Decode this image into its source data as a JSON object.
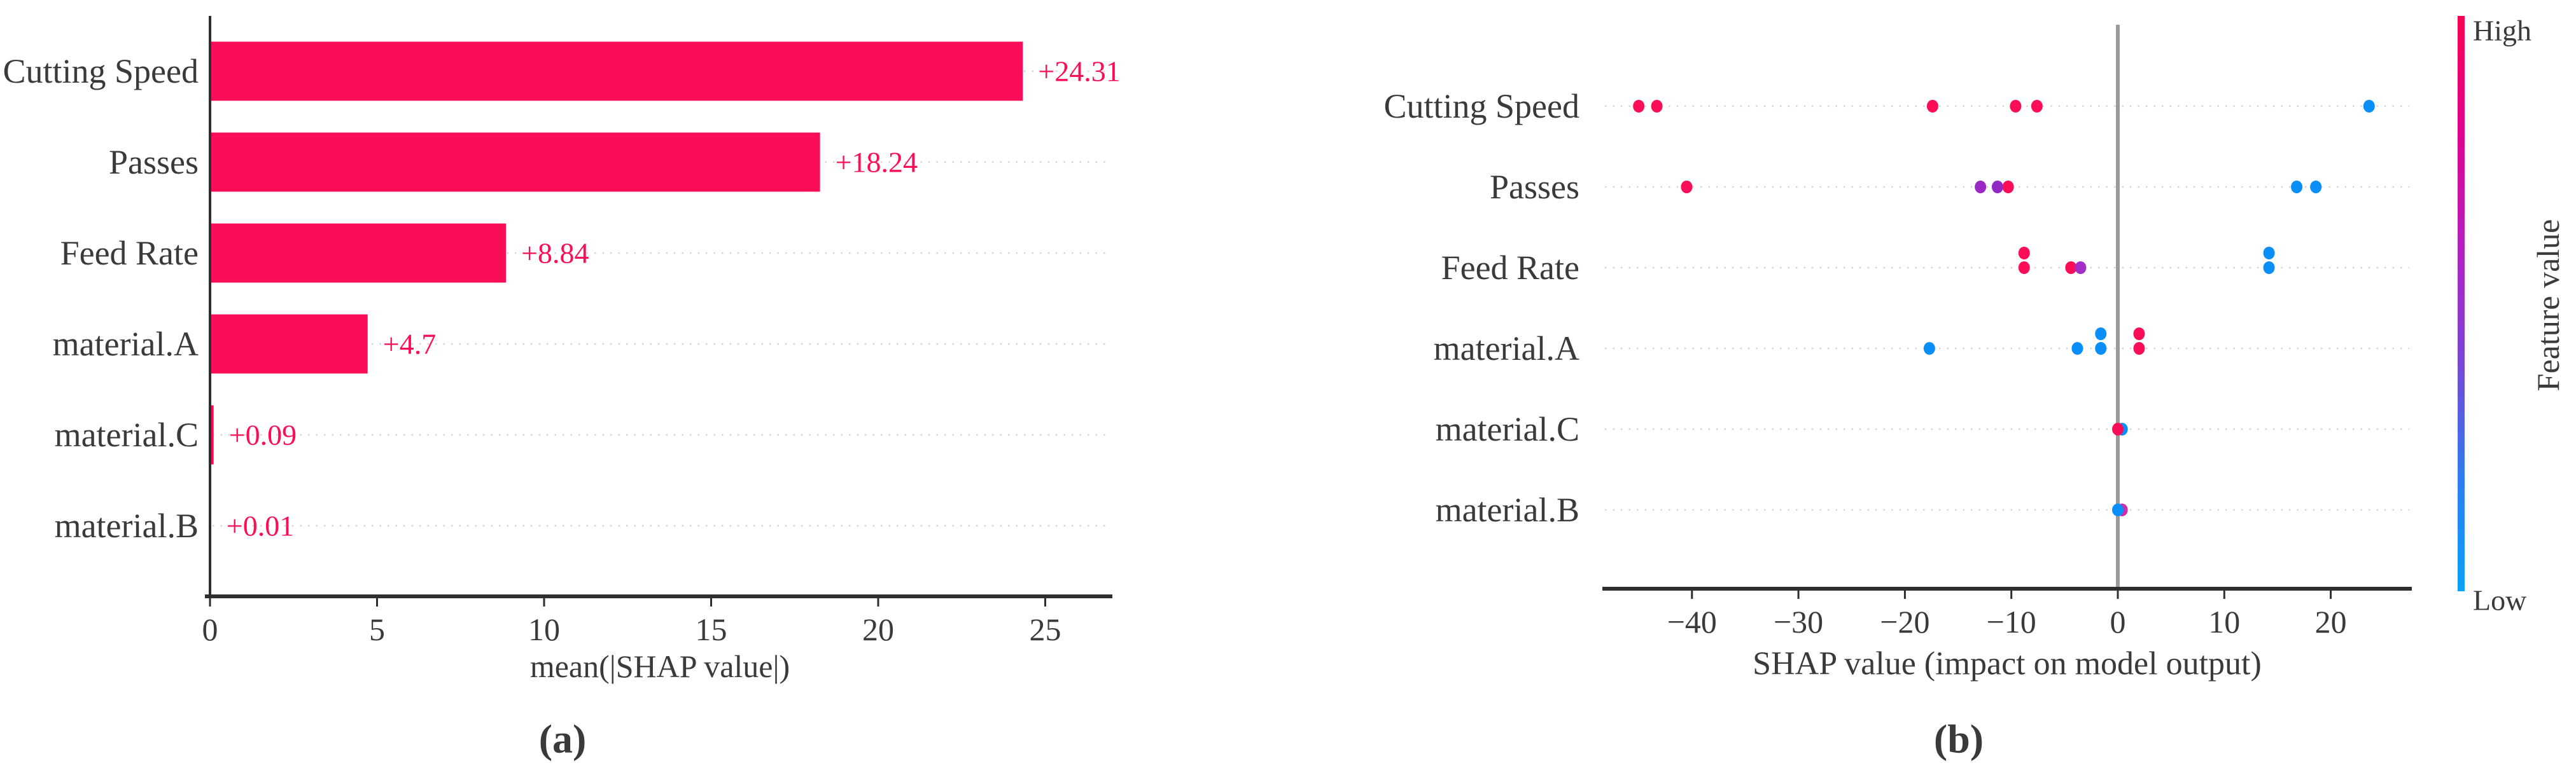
{
  "figure": {
    "background": "#ffffff",
    "text_color": "#3a3a3a",
    "axis_color": "#2e2e2e",
    "grid_color": "#d4d4d4",
    "accent_red": "#fb0d57",
    "accent_blue": "#0a8ef8"
  },
  "chart_data": [
    {
      "type": "bar",
      "panel": "a",
      "caption": "(a)",
      "xlabel": "mean(|SHAP value|)",
      "orientation": "horizontal",
      "grid": "dotted-horizontal",
      "x_ticks": [
        0,
        5,
        10,
        15,
        20,
        25
      ],
      "x_tick_labels": [
        "0",
        "5",
        "10",
        "15",
        "20",
        "25"
      ],
      "xlim": [
        0,
        27
      ],
      "bar_color": "#fb0d57",
      "value_label_color": "#fb0d57",
      "categories": [
        "Cutting Speed",
        "Passes",
        "Feed Rate",
        "material.A",
        "material.C",
        "material.B"
      ],
      "values": [
        24.31,
        18.24,
        8.84,
        4.7,
        0.09,
        0.01
      ],
      "value_labels": [
        "+24.31",
        "+18.24",
        "+8.84",
        "+4.7",
        "+0.09",
        "+0.01"
      ]
    },
    {
      "type": "scatter",
      "panel": "b",
      "caption": "(b)",
      "xlabel": "SHAP value (impact on model output)",
      "grid": "dotted-horizontal",
      "zero_line": true,
      "zero_line_color": "#9a9a9a",
      "x_ticks": [
        -40,
        -30,
        -20,
        -10,
        0,
        10,
        20
      ],
      "x_tick_labels": [
        "−40",
        "−30",
        "−20",
        "−10",
        "0",
        "10",
        "20"
      ],
      "xlim": [
        -48.5,
        27.5
      ],
      "categories": [
        "Cutting Speed",
        "Passes",
        "Feed Rate",
        "material.A",
        "material.C",
        "material.B"
      ],
      "series": [
        {
          "name": "Cutting Speed",
          "points": [
            {
              "x": -45.0,
              "color": "#fb0d57"
            },
            {
              "x": -43.3,
              "color": "#fb0d57"
            },
            {
              "x": -17.4,
              "color": "#fb0d57"
            },
            {
              "x": -9.6,
              "color": "#fb0d57"
            },
            {
              "x": -7.6,
              "color": "#fb0d57"
            },
            {
              "x": 23.6,
              "color": "#0a8ef8"
            }
          ]
        },
        {
          "name": "Passes",
          "points": [
            {
              "x": -40.5,
              "color": "#fb0d57"
            },
            {
              "x": -12.9,
              "color": "#9a28c4"
            },
            {
              "x": -11.3,
              "color": "#8f2bc4"
            },
            {
              "x": -10.3,
              "color": "#fb0d57"
            },
            {
              "x": 16.8,
              "color": "#0a8ef8"
            },
            {
              "x": 18.6,
              "color": "#0a8ef8"
            }
          ]
        },
        {
          "name": "Feed Rate",
          "points": [
            {
              "x": -8.8,
              "color": "#fb0d57",
              "dy": -23
            },
            {
              "x": -8.8,
              "color": "#fb0d57"
            },
            {
              "x": -4.4,
              "color": "#fb0d57"
            },
            {
              "x": -3.5,
              "color": "#a42cc7"
            },
            {
              "x": 14.2,
              "color": "#0a8ef8",
              "dy": -23
            },
            {
              "x": 14.2,
              "color": "#0a8ef8"
            }
          ]
        },
        {
          "name": "material.A",
          "points": [
            {
              "x": -17.7,
              "color": "#0a8ef8"
            },
            {
              "x": -3.8,
              "color": "#0a8ef8"
            },
            {
              "x": -1.6,
              "color": "#0a8ef8",
              "dy": -23
            },
            {
              "x": -1.6,
              "color": "#0a8ef8"
            },
            {
              "x": 2.0,
              "color": "#fb0d57",
              "dy": -23
            },
            {
              "x": 2.0,
              "color": "#fb0d57"
            }
          ]
        },
        {
          "name": "material.C",
          "points": [
            {
              "x": 0.4,
              "color": "#0a8ef8"
            },
            {
              "x": 0.0,
              "color": "#fb0d57"
            }
          ]
        },
        {
          "name": "material.B",
          "points": [
            {
              "x": 0.4,
              "color": "#cc2fa8"
            },
            {
              "x": 0.0,
              "color": "#0a8ef8"
            }
          ]
        }
      ],
      "colorbar": {
        "title": "Feature value",
        "high_label": "High",
        "low_label": "Low",
        "gradient_top_to_bottom": [
          "#fb0051",
          "#e1008d",
          "#b61fc0",
          "#7a46d6",
          "#2f7cf0",
          "#08a2fb"
        ]
      }
    }
  ]
}
